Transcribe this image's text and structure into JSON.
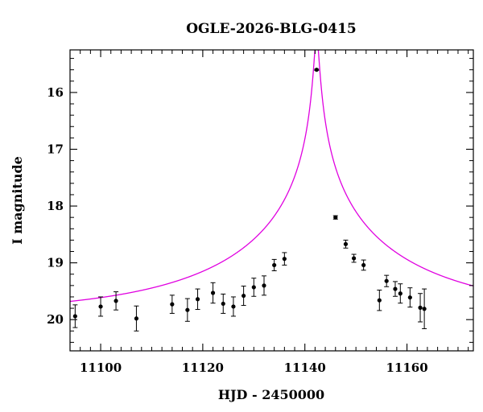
{
  "chart_data": {
    "type": "scatter",
    "title": "OGLE-2026-BLG-0415",
    "xlabel": "HJD - 2450000",
    "ylabel": "I magnitude",
    "xlim": [
      11094,
      11173
    ],
    "ylim": [
      20.55,
      15.25
    ],
    "y_inverted": true,
    "x_ticks": [
      11100,
      11120,
      11140,
      11160
    ],
    "y_ticks": [
      16,
      17,
      18,
      19,
      20
    ],
    "x_minor_step": 2,
    "y_minor_step": 0.2,
    "grid": false,
    "legend": "none",
    "series": [
      {
        "type": "errorbar",
        "color": "#000000",
        "points": [
          {
            "x": 11095.0,
            "y": 19.94,
            "err": 0.2
          },
          {
            "x": 11100.0,
            "y": 19.77,
            "err": 0.17
          },
          {
            "x": 11103.0,
            "y": 19.67,
            "err": 0.16
          },
          {
            "x": 11107.0,
            "y": 19.98,
            "err": 0.22
          },
          {
            "x": 11114.0,
            "y": 19.73,
            "err": 0.16
          },
          {
            "x": 11117.0,
            "y": 19.83,
            "err": 0.2
          },
          {
            "x": 11119.0,
            "y": 19.64,
            "err": 0.18
          },
          {
            "x": 11122.0,
            "y": 19.53,
            "err": 0.18
          },
          {
            "x": 11124.0,
            "y": 19.72,
            "err": 0.17
          },
          {
            "x": 11126.0,
            "y": 19.77,
            "err": 0.17
          },
          {
            "x": 11128.0,
            "y": 19.58,
            "err": 0.17
          },
          {
            "x": 11130.0,
            "y": 19.43,
            "err": 0.16
          },
          {
            "x": 11132.0,
            "y": 19.4,
            "err": 0.17
          },
          {
            "x": 11134.0,
            "y": 19.04,
            "err": 0.1
          },
          {
            "x": 11136.0,
            "y": 18.93,
            "err": 0.11
          },
          {
            "x": 11142.3,
            "y": 15.6,
            "err": 0.01
          },
          {
            "x": 11146.0,
            "y": 18.2,
            "err": 0.03
          },
          {
            "x": 11148.0,
            "y": 18.67,
            "err": 0.07
          },
          {
            "x": 11149.6,
            "y": 18.92,
            "err": 0.07
          },
          {
            "x": 11151.5,
            "y": 19.04,
            "err": 0.09
          },
          {
            "x": 11154.6,
            "y": 19.66,
            "err": 0.18
          },
          {
            "x": 11156.0,
            "y": 19.32,
            "err": 0.1
          },
          {
            "x": 11157.7,
            "y": 19.46,
            "err": 0.13
          },
          {
            "x": 11158.7,
            "y": 19.54,
            "err": 0.17
          },
          {
            "x": 11160.6,
            "y": 19.61,
            "err": 0.17
          },
          {
            "x": 11162.6,
            "y": 19.79,
            "err": 0.25
          },
          {
            "x": 11163.4,
            "y": 19.81,
            "err": 0.35
          }
        ]
      },
      {
        "type": "model-curve",
        "color": "#e000e0",
        "t0": 11142.3,
        "u0": 0.011,
        "tE": 40,
        "baseline_mag": 19.9
      }
    ]
  }
}
